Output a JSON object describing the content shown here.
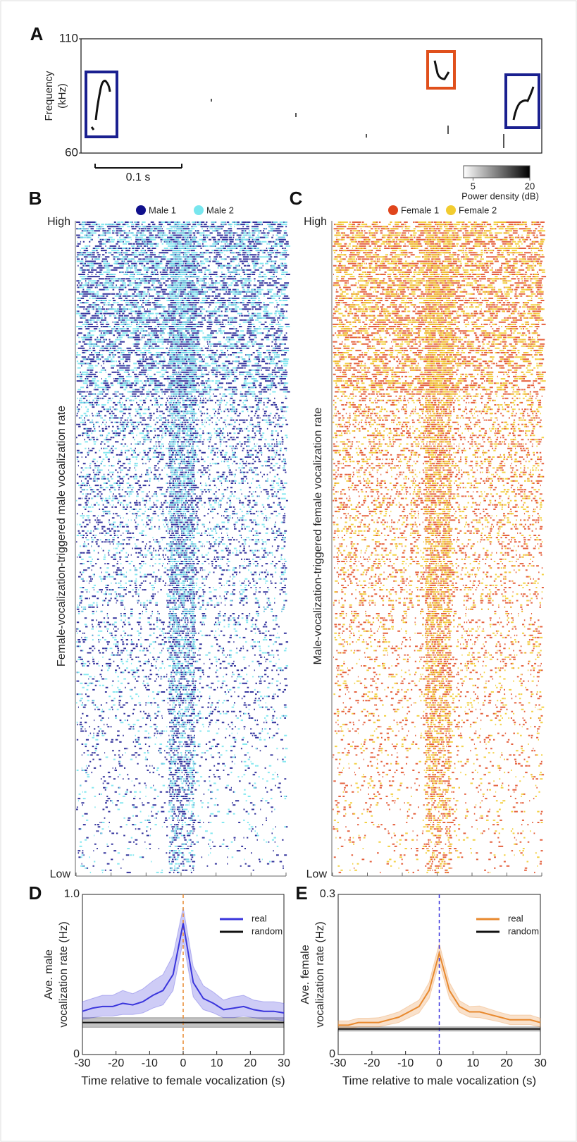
{
  "chart_data": [
    {
      "type": "spectrogram",
      "panel_label": "A",
      "ylabel": [
        "Frequency",
        "(kHz)"
      ],
      "ylim": [
        60,
        110
      ],
      "yticks": [
        110,
        60
      ],
      "scale_bar_label": "0.1 s",
      "colorbar_label": "Power density (dB)",
      "clim": [
        2.5,
        20
      ],
      "cticks": [
        5,
        20
      ]
    },
    {
      "type": "raster",
      "panel_label": "B",
      "ylabel": "Female-vocalization-triggered male vocalization rate",
      "y_high_label": "High",
      "y_low_label": "Low",
      "xlim": [
        -30,
        30
      ],
      "xticks": [
        -30,
        -20,
        -10,
        0,
        10,
        20,
        30
      ],
      "series": [
        {
          "name": "Male 1",
          "color": "#10108c"
        },
        {
          "name": "Male 2",
          "color": "#78e6ee"
        }
      ]
    },
    {
      "type": "raster",
      "panel_label": "C",
      "ylabel": "Male-vocalization-triggered female vocalization rate",
      "y_high_label": "High",
      "y_low_label": "Low",
      "xlim": [
        -30,
        30
      ],
      "xticks": [
        -30,
        -20,
        -10,
        0,
        10,
        20,
        30
      ],
      "series": [
        {
          "name": "Female 1",
          "color": "#e0451c"
        },
        {
          "name": "Female 2",
          "color": "#f2cc30"
        }
      ]
    },
    {
      "type": "line",
      "panel_label": "D",
      "ylabel": [
        "Ave. male",
        "vocalization rate (Hz)"
      ],
      "xlabel": "Time relative to female vocalization (s)",
      "xlim": [
        -30,
        30
      ],
      "xticks": [
        -30,
        -20,
        -10,
        0,
        10,
        20,
        30
      ],
      "ylim": [
        0,
        1
      ],
      "yticks": [
        0,
        {
          "value": 1,
          "label": "1.0"
        }
      ],
      "vline": 0,
      "vline_color": "#e8892e",
      "x": [
        -30,
        -27,
        -24,
        -21,
        -18,
        -15,
        -12,
        -9,
        -6,
        -3,
        0,
        3,
        6,
        9,
        12,
        15,
        18,
        21,
        24,
        27,
        30
      ],
      "series": [
        {
          "name": "real",
          "color": "#3a35dc",
          "values": [
            0.27,
            0.29,
            0.3,
            0.3,
            0.32,
            0.31,
            0.33,
            0.37,
            0.4,
            0.5,
            0.82,
            0.45,
            0.35,
            0.32,
            0.28,
            0.29,
            0.3,
            0.28,
            0.27,
            0.27,
            0.26
          ],
          "lower": [
            0.22,
            0.23,
            0.24,
            0.24,
            0.25,
            0.25,
            0.26,
            0.29,
            0.31,
            0.4,
            0.71,
            0.36,
            0.28,
            0.26,
            0.23,
            0.23,
            0.24,
            0.23,
            0.22,
            0.22,
            0.21
          ],
          "upper": [
            0.33,
            0.35,
            0.37,
            0.37,
            0.4,
            0.38,
            0.41,
            0.46,
            0.5,
            0.62,
            0.92,
            0.55,
            0.43,
            0.39,
            0.34,
            0.36,
            0.37,
            0.34,
            0.33,
            0.33,
            0.32
          ]
        },
        {
          "name": "random",
          "color": "#111111",
          "values": [
            0.2,
            0.2,
            0.2,
            0.2,
            0.2,
            0.2,
            0.2,
            0.2,
            0.2,
            0.2,
            0.2,
            0.2,
            0.2,
            0.2,
            0.2,
            0.2,
            0.2,
            0.2,
            0.2,
            0.2,
            0.2
          ],
          "lower": [
            0.17,
            0.17,
            0.17,
            0.17,
            0.17,
            0.17,
            0.17,
            0.17,
            0.17,
            0.17,
            0.17,
            0.17,
            0.17,
            0.17,
            0.17,
            0.17,
            0.17,
            0.17,
            0.17,
            0.17,
            0.17
          ],
          "upper": [
            0.23,
            0.23,
            0.23,
            0.23,
            0.23,
            0.23,
            0.23,
            0.23,
            0.23,
            0.23,
            0.23,
            0.23,
            0.23,
            0.23,
            0.23,
            0.23,
            0.23,
            0.23,
            0.23,
            0.23,
            0.23
          ]
        }
      ]
    },
    {
      "type": "line",
      "panel_label": "E",
      "ylabel": [
        "Ave. female",
        "vocalization rate (Hz)"
      ],
      "xlabel": "Time relative to male vocalization (s)",
      "xlim": [
        -30,
        30
      ],
      "xticks": [
        -30,
        -20,
        -10,
        0,
        10,
        20,
        30
      ],
      "ylim": [
        0,
        0.3
      ],
      "yticks": [
        0,
        0.3
      ],
      "vline": 0,
      "vline_color": "#3a35dc",
      "x": [
        -30,
        -27,
        -24,
        -21,
        -18,
        -15,
        -12,
        -9,
        -6,
        -3,
        0,
        3,
        6,
        9,
        12,
        15,
        18,
        21,
        24,
        27,
        30
      ],
      "series": [
        {
          "name": "real",
          "color": "#e8892e",
          "values": [
            0.055,
            0.055,
            0.06,
            0.06,
            0.06,
            0.065,
            0.07,
            0.08,
            0.09,
            0.12,
            0.19,
            0.12,
            0.09,
            0.08,
            0.08,
            0.075,
            0.07,
            0.065,
            0.065,
            0.065,
            0.06
          ],
          "lower": [
            0.048,
            0.048,
            0.052,
            0.052,
            0.052,
            0.056,
            0.06,
            0.069,
            0.078,
            0.105,
            0.172,
            0.105,
            0.079,
            0.07,
            0.069,
            0.065,
            0.061,
            0.056,
            0.056,
            0.056,
            0.052
          ],
          "upper": [
            0.063,
            0.063,
            0.068,
            0.068,
            0.069,
            0.074,
            0.08,
            0.091,
            0.102,
            0.135,
            0.208,
            0.135,
            0.101,
            0.09,
            0.091,
            0.085,
            0.079,
            0.074,
            0.074,
            0.074,
            0.068
          ]
        },
        {
          "name": "random",
          "color": "#111111",
          "values": [
            0.048,
            0.048,
            0.048,
            0.048,
            0.048,
            0.048,
            0.048,
            0.048,
            0.048,
            0.048,
            0.048,
            0.048,
            0.048,
            0.048,
            0.048,
            0.048,
            0.048,
            0.048,
            0.048,
            0.048,
            0.048
          ],
          "lower": [
            0.044,
            0.044,
            0.044,
            0.044,
            0.044,
            0.044,
            0.044,
            0.044,
            0.044,
            0.044,
            0.044,
            0.044,
            0.044,
            0.044,
            0.044,
            0.044,
            0.044,
            0.044,
            0.044,
            0.044,
            0.044
          ],
          "upper": [
            0.052,
            0.052,
            0.052,
            0.052,
            0.052,
            0.052,
            0.052,
            0.052,
            0.052,
            0.052,
            0.052,
            0.052,
            0.052,
            0.052,
            0.052,
            0.052,
            0.052,
            0.052,
            0.052,
            0.052,
            0.052
          ]
        }
      ]
    }
  ]
}
